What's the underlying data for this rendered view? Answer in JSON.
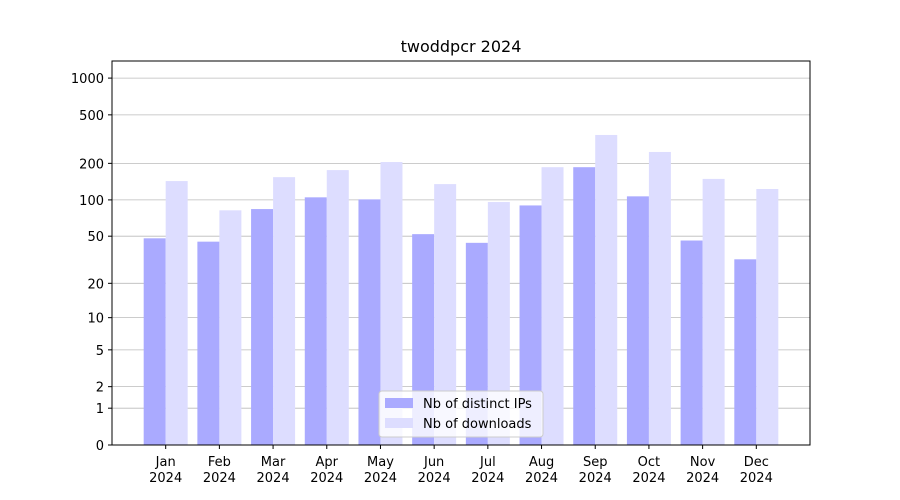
{
  "chart_data": {
    "type": "bar",
    "title": "twoddpcr 2024",
    "categories": [
      "Jan\n2024",
      "Feb\n2024",
      "Mar\n2024",
      "Apr\n2024",
      "May\n2024",
      "Jun\n2024",
      "Jul\n2024",
      "Aug\n2024",
      "Sep\n2024",
      "Oct\n2024",
      "Nov\n2024",
      "Dec\n2024"
    ],
    "series": [
      {
        "name": "Nb of distinct IPs",
        "color": "#aaaaff",
        "values": [
          48,
          45,
          84,
          105,
          101,
          52,
          44,
          90,
          186,
          107,
          46,
          32
        ]
      },
      {
        "name": "Nb of downloads",
        "color": "#ddddff",
        "values": [
          143,
          82,
          154,
          176,
          205,
          135,
          96,
          186,
          342,
          248,
          149,
          123
        ]
      }
    ],
    "yscale": "log1p",
    "ylim": [
      0,
      1380
    ],
    "yticks": [
      0,
      1,
      2,
      5,
      10,
      20,
      50,
      100,
      200,
      500,
      1000
    ],
    "grid": true,
    "legend": "lower center"
  }
}
